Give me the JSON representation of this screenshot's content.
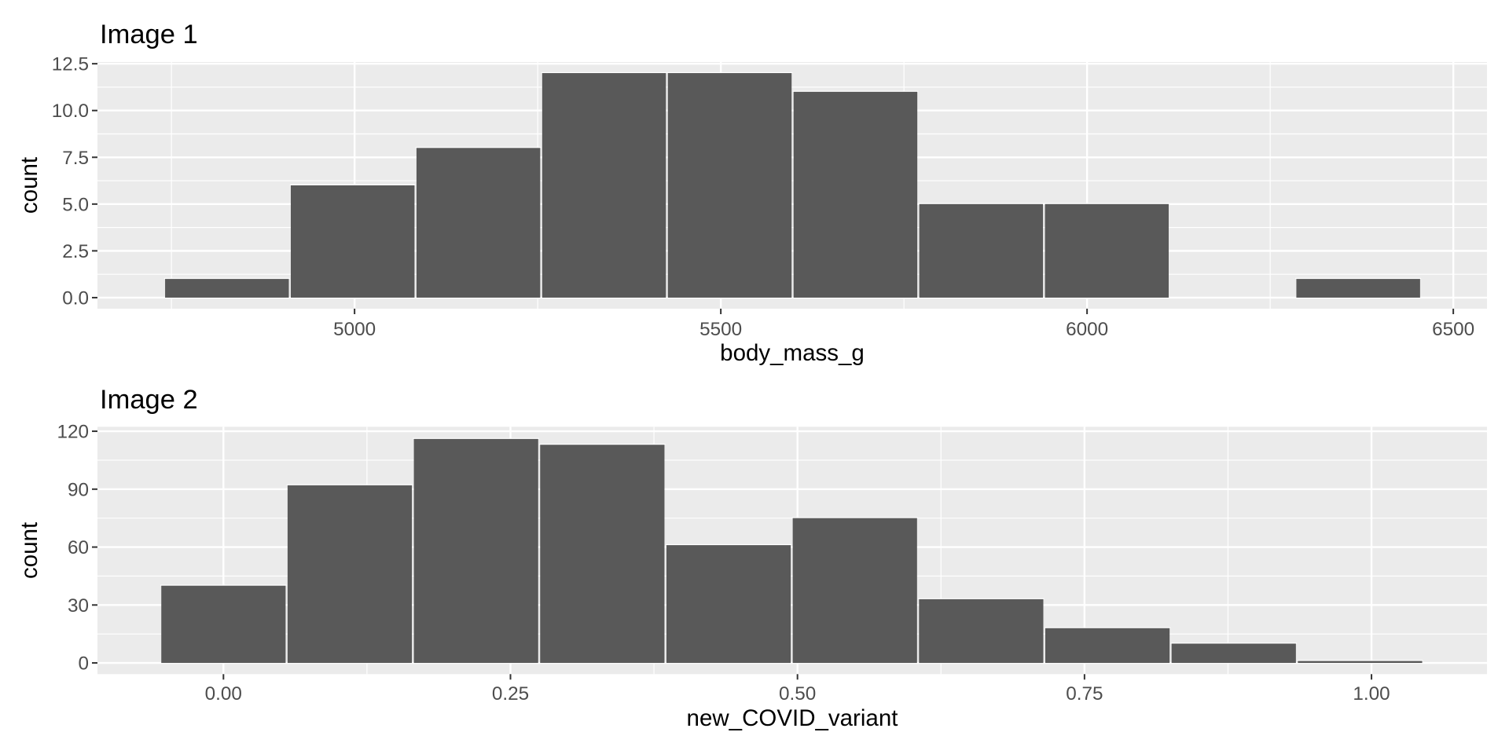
{
  "page": {
    "background": "#ffffff"
  },
  "chart_data": [
    {
      "type": "bar",
      "kind": "histogram",
      "title": "Image 1",
      "xlabel": "body_mass_g",
      "ylabel": "count",
      "bins": {
        "start": 4740,
        "width": 171.6
      },
      "counts": [
        1,
        6,
        8,
        12,
        12,
        11,
        5,
        5,
        0,
        1
      ],
      "x_ticks": [
        5000,
        5500,
        6000,
        6500
      ],
      "x_tick_labels": [
        "5000",
        "5500",
        "6000",
        "6500"
      ],
      "y_ticks": [
        0,
        2.5,
        5,
        7.5,
        10,
        12.5
      ],
      "y_tick_labels": [
        "0.0",
        "2.5",
        "5.0",
        "7.5",
        "10.0",
        "12.5"
      ],
      "xlim": [
        4649,
        6546
      ],
      "ylim": [
        -0.59,
        12.59
      ],
      "grid": true,
      "legend": "none",
      "colors": {
        "bar_fill": "#595959",
        "bar_stroke": "#ffffff",
        "panel_bg": "#EBEBEB",
        "grid": "#ffffff",
        "tick_mark": "#333333",
        "tick_label": "#4D4D4D",
        "title": "#000000",
        "axis_title": "#000000"
      }
    },
    {
      "type": "bar",
      "kind": "histogram",
      "title": "Image 2",
      "xlabel": "new_COVID_variant",
      "ylabel": "count",
      "bins": {
        "start": -0.055,
        "width": 0.11
      },
      "counts": [
        40,
        92,
        116,
        113,
        61,
        75,
        33,
        18,
        10,
        1
      ],
      "x_ticks": [
        0,
        0.25,
        0.5,
        0.75,
        1.0
      ],
      "x_tick_labels": [
        "0.00",
        "0.25",
        "0.50",
        "0.75",
        "1.00"
      ],
      "y_ticks": [
        0,
        30,
        60,
        90,
        120
      ],
      "y_tick_labels": [
        "0",
        "30",
        "60",
        "90",
        "120"
      ],
      "xlim": [
        -0.10975,
        1.1006
      ],
      "ylim": [
        -5.8,
        122.3
      ],
      "grid": true,
      "legend": "none",
      "colors": {
        "bar_fill": "#595959",
        "bar_stroke": "#ffffff",
        "panel_bg": "#EBEBEB",
        "grid": "#ffffff",
        "tick_mark": "#333333",
        "tick_label": "#4D4D4D",
        "title": "#000000",
        "axis_title": "#000000"
      }
    }
  ]
}
